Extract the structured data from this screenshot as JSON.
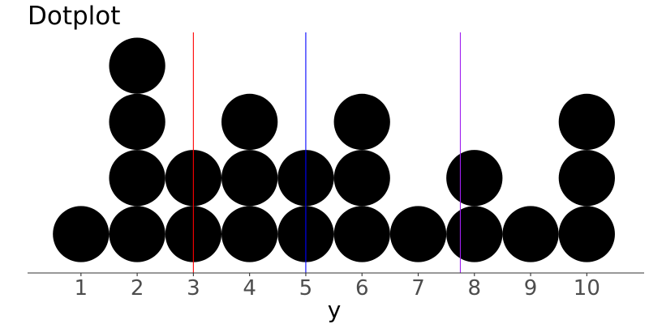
{
  "chart_data": {
    "type": "dotplot",
    "title": "Dotplot",
    "xlabel": "y",
    "ylabel": "",
    "xlim": [
      0.05,
      11.02
    ],
    "x_ticks": [
      1,
      2,
      3,
      4,
      5,
      6,
      7,
      8,
      9,
      10
    ],
    "x_tick_labels": [
      "1",
      "2",
      "3",
      "4",
      "5",
      "6",
      "7",
      "8",
      "9",
      "10"
    ],
    "dot_values": [
      1,
      2,
      3,
      4,
      5,
      6,
      7,
      8,
      9,
      10
    ],
    "dot_counts": [
      1,
      4,
      2,
      3,
      2,
      3,
      1,
      2,
      1,
      3
    ],
    "vertical_lines": [
      {
        "x": 3.0,
        "color": "#ff0000"
      },
      {
        "x": 5.0,
        "color": "#0000ff"
      },
      {
        "x": 7.75,
        "color": "#a020f0"
      }
    ],
    "dot_color": "#000000",
    "axis_color": "#333333",
    "grid": false,
    "legend": "none"
  }
}
